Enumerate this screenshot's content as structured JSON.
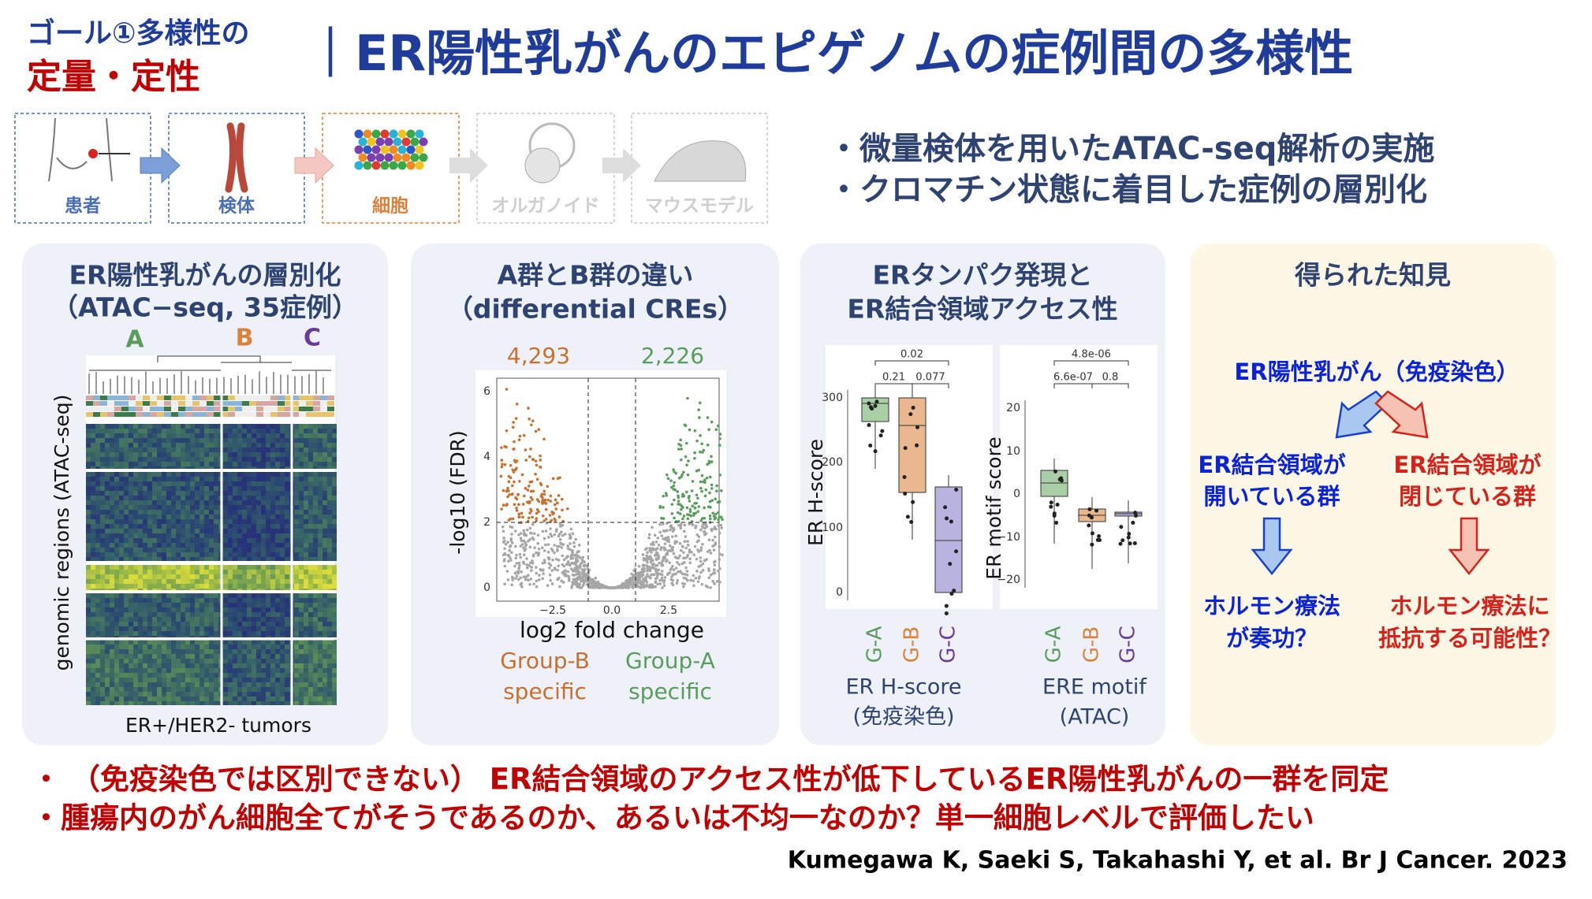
{
  "header": {
    "goal": "ゴール①多様性の",
    "goal_sub": "定量・定性",
    "title": "｜ER陽性乳がんのエピゲノムの症例間の多様性"
  },
  "pipeline": [
    "患者",
    "検体",
    "細胞",
    "オルガノイド",
    "マウスモデル"
  ],
  "bullets": [
    "・微量検体を用いたATAC-seq解析の実施",
    "・クロマチン状態に着目した症例の層別化"
  ],
  "panels": [
    {
      "title": [
        "ER陽性乳がんの層別化",
        "（ATAC−seq, 35症例）"
      ],
      "clusters": [
        "A",
        "B",
        "C"
      ],
      "y_label": "genomic regions (ATAC-seq)",
      "x_label": "ER+/HER2- tumors"
    },
    {
      "title": [
        "A群とB群の違い",
        "（differential CREs）"
      ],
      "counts": [
        "4,293",
        "2,226"
      ],
      "y_label": "-log10 (FDR)",
      "x_label": "log2 fold change",
      "yticks": [
        "0",
        "2",
        "4",
        "6"
      ],
      "xticks": [
        "−2.5",
        "0.0",
        "2.5"
      ],
      "groups": [
        [
          "Group-B",
          "specific"
        ],
        [
          "Group-A",
          "specific"
        ]
      ]
    },
    {
      "title": [
        "ERタンパク発現と",
        "ER結合領域アクセス性"
      ],
      "plots": [
        {
          "y_label": "ER H-score",
          "yticks": [
            "0",
            "100",
            "200",
            "300"
          ],
          "pvalues": [
            "0.02",
            "0.21",
            "0.077"
          ],
          "groups": [
            "G-A",
            "G-B",
            "G-C"
          ],
          "caption": [
            "ER H-score",
            "(免疫染色)"
          ]
        },
        {
          "y_label": "ER motif score",
          "yticks": [
            "−20",
            "−10",
            "0",
            "10",
            "20"
          ],
          "pvalues": [
            "4.8e-06",
            "6.6e-07",
            "0.8"
          ],
          "groups": [
            "G-A",
            "G-B",
            "G-C"
          ],
          "caption": [
            "ERE motif",
            "(ATAC)"
          ]
        }
      ]
    },
    {
      "title": [
        "得られた知見"
      ],
      "root": "ER陽性乳がん（免疫染色）",
      "branches": [
        {
          "label": [
            "ER結合領域が",
            "開いている群"
          ],
          "outcome": [
            "ホルモン療法",
            "が奏功？"
          ]
        },
        {
          "label": [
            "ER結合領域が",
            "閉じている群"
          ],
          "outcome": [
            "ホルモン療法に",
            "抵抗する可能性？"
          ]
        }
      ]
    }
  ],
  "conclusions": [
    "・ （免疫染色では区別できない） ER結合領域のアクセス性が低下しているER陽性乳がんの一群を同定",
    "・腫瘍内のがん細胞全てがそうであるのか、あるいは不均一なのか？単一細胞レベルで評価したい"
  ],
  "citation": "Kumegawa K, Saeki S, Takahashi Y, et al. Br J Cancer. 2023"
}
